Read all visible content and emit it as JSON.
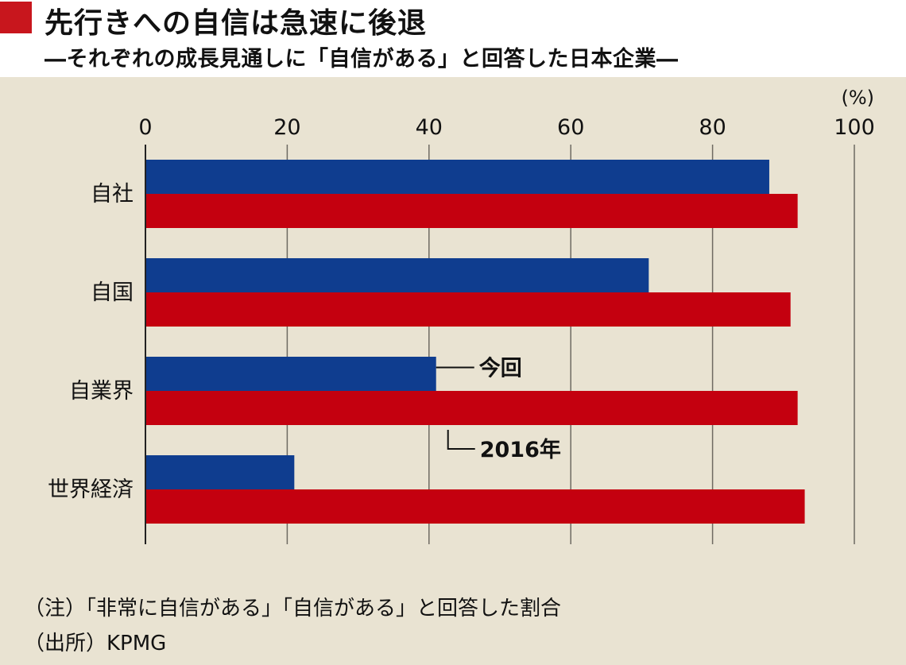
{
  "header": {
    "title": "先行きへの自信は急速に後退",
    "subtitle": "―それぞれの成長見通しに「自信がある」と回答した日本企業―"
  },
  "colors": {
    "panel_bg": "#e9e3d2",
    "accent_red": "#c8161d",
    "current": "#0f3d8f",
    "prior": "#c4000f",
    "axis": "#222222",
    "grid": "#6e6a62"
  },
  "chart_data": {
    "type": "bar",
    "orientation": "horizontal",
    "unit_label": "(%)",
    "xlim": [
      0,
      100
    ],
    "x_ticks": [
      0,
      20,
      40,
      60,
      80,
      100
    ],
    "grid": true,
    "categories": [
      "自社",
      "自国",
      "自業界",
      "世界経済"
    ],
    "series": [
      {
        "name": "今回",
        "values": [
          88,
          71,
          41,
          21
        ]
      },
      {
        "name": "2016年",
        "values": [
          92,
          91,
          92,
          93
        ]
      }
    ]
  },
  "footnotes": {
    "note": "（注）「非常に自信がある」「自信がある」と回答した割合",
    "source": "（出所）KPMG"
  }
}
